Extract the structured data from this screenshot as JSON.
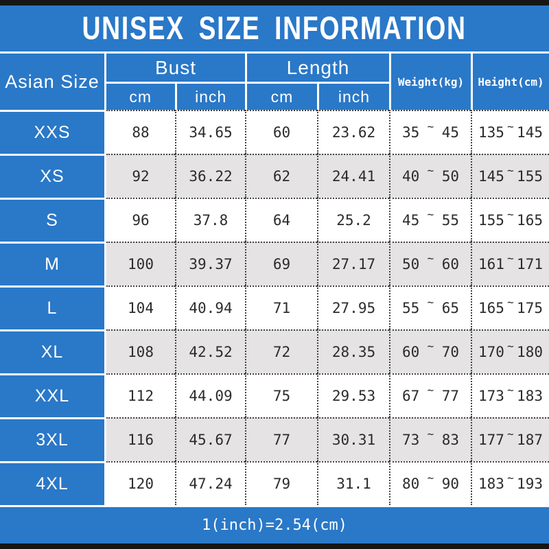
{
  "colors": {
    "accent_blue": "#2a78c8",
    "stripe_gray": "#e5e3e4",
    "frame_black": "#161616"
  },
  "header": {
    "title": "UNISEX SIZE INFORMATION"
  },
  "table": {
    "corner_header": "Asian Size",
    "groups": [
      {
        "label": "Bust",
        "sub": [
          "cm",
          "inch"
        ]
      },
      {
        "label": "Length",
        "sub": [
          "cm",
          "inch"
        ]
      }
    ],
    "weight_header": "Weight(kg)",
    "height_header": "Height(cm)",
    "range_separator": "~",
    "rows": [
      {
        "size": "XXS",
        "bust_cm": "88",
        "bust_inch": "34.65",
        "length_cm": "60",
        "length_inch": "23.62",
        "weight_min": "35",
        "weight_max": "45",
        "height_min": "135",
        "height_max": "145"
      },
      {
        "size": "XS",
        "bust_cm": "92",
        "bust_inch": "36.22",
        "length_cm": "62",
        "length_inch": "24.41",
        "weight_min": "40",
        "weight_max": "50",
        "height_min": "145",
        "height_max": "155"
      },
      {
        "size": "S",
        "bust_cm": "96",
        "bust_inch": "37.8",
        "length_cm": "64",
        "length_inch": "25.2",
        "weight_min": "45",
        "weight_max": "55",
        "height_min": "155",
        "height_max": "165"
      },
      {
        "size": "M",
        "bust_cm": "100",
        "bust_inch": "39.37",
        "length_cm": "69",
        "length_inch": "27.17",
        "weight_min": "50",
        "weight_max": "60",
        "height_min": "161",
        "height_max": "171"
      },
      {
        "size": "L",
        "bust_cm": "104",
        "bust_inch": "40.94",
        "length_cm": "71",
        "length_inch": "27.95",
        "weight_min": "55",
        "weight_max": "65",
        "height_min": "165",
        "height_max": "175"
      },
      {
        "size": "XL",
        "bust_cm": "108",
        "bust_inch": "42.52",
        "length_cm": "72",
        "length_inch": "28.35",
        "weight_min": "60",
        "weight_max": "70",
        "height_min": "170",
        "height_max": "180"
      },
      {
        "size": "XXL",
        "bust_cm": "112",
        "bust_inch": "44.09",
        "length_cm": "75",
        "length_inch": "29.53",
        "weight_min": "67",
        "weight_max": "77",
        "height_min": "173",
        "height_max": "183"
      },
      {
        "size": "3XL",
        "bust_cm": "116",
        "bust_inch": "45.67",
        "length_cm": "77",
        "length_inch": "30.31",
        "weight_min": "73",
        "weight_max": "83",
        "height_min": "177",
        "height_max": "187"
      },
      {
        "size": "4XL",
        "bust_cm": "120",
        "bust_inch": "47.24",
        "length_cm": "79",
        "length_inch": "31.1",
        "weight_min": "80",
        "weight_max": "90",
        "height_min": "183",
        "height_max": "193"
      }
    ]
  },
  "footer": {
    "note": "1(inch)=2.54(cm)"
  }
}
